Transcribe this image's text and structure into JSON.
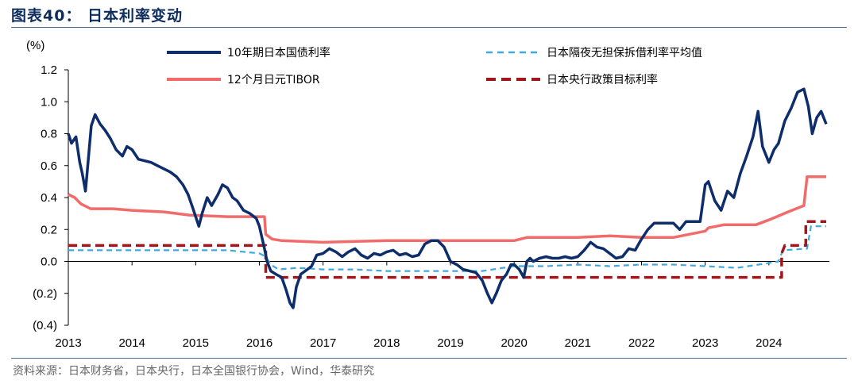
{
  "title": "图表40：  日本利率变动",
  "source": "资料来源：日本财务省，日本央行，日本全国银行协会，Wind，华泰研究",
  "chart_data": {
    "type": "line",
    "title": "图表40：  日本利率变动",
    "ylabel": "(%)",
    "xlabel": "",
    "ylim": [
      -0.4,
      1.2
    ],
    "xlim": [
      2013.0,
      2024.95
    ],
    "y_ticks": [
      {
        "v": 1.2,
        "label": "1.2"
      },
      {
        "v": 1.0,
        "label": "1.0"
      },
      {
        "v": 0.8,
        "label": "0.8"
      },
      {
        "v": 0.6,
        "label": "0.6"
      },
      {
        "v": 0.4,
        "label": "0.4"
      },
      {
        "v": 0.2,
        "label": "0.2"
      },
      {
        "v": 0.0,
        "label": "0.0"
      },
      {
        "v": -0.2,
        "label": "(0.2)"
      },
      {
        "v": -0.4,
        "label": "(0.4)"
      }
    ],
    "x_ticks": [
      "2013",
      "2014",
      "2015",
      "2016",
      "2017",
      "2018",
      "2019",
      "2020",
      "2021",
      "2022",
      "2023",
      "2024"
    ],
    "grid": false,
    "legend": "top",
    "series": [
      {
        "name": "10年期日本国债利率",
        "color": "#0d2d6b",
        "style": "solid",
        "points": [
          [
            2013.0,
            0.8
          ],
          [
            2013.05,
            0.74
          ],
          [
            2013.12,
            0.78
          ],
          [
            2013.18,
            0.62
          ],
          [
            2013.22,
            0.55
          ],
          [
            2013.27,
            0.44
          ],
          [
            2013.3,
            0.58
          ],
          [
            2013.36,
            0.85
          ],
          [
            2013.42,
            0.92
          ],
          [
            2013.5,
            0.86
          ],
          [
            2013.58,
            0.82
          ],
          [
            2013.66,
            0.77
          ],
          [
            2013.75,
            0.7
          ],
          [
            2013.85,
            0.66
          ],
          [
            2013.92,
            0.72
          ],
          [
            2014.0,
            0.7
          ],
          [
            2014.1,
            0.64
          ],
          [
            2014.2,
            0.63
          ],
          [
            2014.3,
            0.62
          ],
          [
            2014.4,
            0.6
          ],
          [
            2014.5,
            0.58
          ],
          [
            2014.6,
            0.56
          ],
          [
            2014.7,
            0.53
          ],
          [
            2014.8,
            0.48
          ],
          [
            2014.88,
            0.42
          ],
          [
            2014.95,
            0.34
          ],
          [
            2015.05,
            0.22
          ],
          [
            2015.1,
            0.3
          ],
          [
            2015.18,
            0.4
          ],
          [
            2015.25,
            0.35
          ],
          [
            2015.35,
            0.42
          ],
          [
            2015.42,
            0.48
          ],
          [
            2015.5,
            0.46
          ],
          [
            2015.58,
            0.4
          ],
          [
            2015.65,
            0.38
          ],
          [
            2015.75,
            0.32
          ],
          [
            2015.85,
            0.3
          ],
          [
            2015.95,
            0.27
          ],
          [
            2016.0,
            0.22
          ],
          [
            2016.08,
            0.08
          ],
          [
            2016.12,
            0.0
          ],
          [
            2016.18,
            -0.06
          ],
          [
            2016.26,
            -0.08
          ],
          [
            2016.35,
            -0.1
          ],
          [
            2016.42,
            -0.18
          ],
          [
            2016.48,
            -0.26
          ],
          [
            2016.53,
            -0.29
          ],
          [
            2016.58,
            -0.16
          ],
          [
            2016.65,
            -0.08
          ],
          [
            2016.72,
            -0.06
          ],
          [
            2016.82,
            -0.03
          ],
          [
            2016.9,
            0.04
          ],
          [
            2017.0,
            0.05
          ],
          [
            2017.1,
            0.08
          ],
          [
            2017.2,
            0.06
          ],
          [
            2017.3,
            0.03
          ],
          [
            2017.4,
            0.06
          ],
          [
            2017.5,
            0.08
          ],
          [
            2017.6,
            0.04
          ],
          [
            2017.7,
            0.02
          ],
          [
            2017.8,
            0.05
          ],
          [
            2017.9,
            0.04
          ],
          [
            2018.0,
            0.06
          ],
          [
            2018.1,
            0.07
          ],
          [
            2018.2,
            0.04
          ],
          [
            2018.3,
            0.05
          ],
          [
            2018.4,
            0.03
          ],
          [
            2018.5,
            0.04
          ],
          [
            2018.6,
            0.11
          ],
          [
            2018.7,
            0.13
          ],
          [
            2018.8,
            0.13
          ],
          [
            2018.9,
            0.09
          ],
          [
            2019.0,
            0.0
          ],
          [
            2019.1,
            -0.02
          ],
          [
            2019.2,
            -0.05
          ],
          [
            2019.3,
            -0.06
          ],
          [
            2019.4,
            -0.07
          ],
          [
            2019.5,
            -0.12
          ],
          [
            2019.58,
            -0.2
          ],
          [
            2019.65,
            -0.26
          ],
          [
            2019.72,
            -0.2
          ],
          [
            2019.8,
            -0.12
          ],
          [
            2019.88,
            -0.08
          ],
          [
            2019.95,
            -0.02
          ],
          [
            2020.0,
            -0.02
          ],
          [
            2020.08,
            -0.05
          ],
          [
            2020.15,
            -0.1
          ],
          [
            2020.2,
            0.0
          ],
          [
            2020.25,
            0.02
          ],
          [
            2020.3,
            0.0
          ],
          [
            2020.4,
            0.02
          ],
          [
            2020.5,
            0.03
          ],
          [
            2020.6,
            0.02
          ],
          [
            2020.7,
            0.02
          ],
          [
            2020.8,
            0.03
          ],
          [
            2020.9,
            0.02
          ],
          [
            2021.0,
            0.03
          ],
          [
            2021.1,
            0.07
          ],
          [
            2021.2,
            0.12
          ],
          [
            2021.3,
            0.09
          ],
          [
            2021.4,
            0.08
          ],
          [
            2021.5,
            0.05
          ],
          [
            2021.6,
            0.02
          ],
          [
            2021.7,
            0.03
          ],
          [
            2021.8,
            0.08
          ],
          [
            2021.9,
            0.07
          ],
          [
            2022.0,
            0.14
          ],
          [
            2022.1,
            0.2
          ],
          [
            2022.2,
            0.24
          ],
          [
            2022.3,
            0.24
          ],
          [
            2022.4,
            0.24
          ],
          [
            2022.5,
            0.24
          ],
          [
            2022.6,
            0.2
          ],
          [
            2022.7,
            0.25
          ],
          [
            2022.8,
            0.25
          ],
          [
            2022.92,
            0.25
          ],
          [
            2023.0,
            0.48
          ],
          [
            2023.05,
            0.5
          ],
          [
            2023.15,
            0.38
          ],
          [
            2023.25,
            0.32
          ],
          [
            2023.35,
            0.44
          ],
          [
            2023.45,
            0.4
          ],
          [
            2023.55,
            0.55
          ],
          [
            2023.65,
            0.66
          ],
          [
            2023.75,
            0.78
          ],
          [
            2023.83,
            0.94
          ],
          [
            2023.9,
            0.72
          ],
          [
            2024.0,
            0.62
          ],
          [
            2024.08,
            0.7
          ],
          [
            2024.15,
            0.74
          ],
          [
            2024.25,
            0.88
          ],
          [
            2024.35,
            0.96
          ],
          [
            2024.45,
            1.06
          ],
          [
            2024.55,
            1.08
          ],
          [
            2024.62,
            0.97
          ],
          [
            2024.68,
            0.8
          ],
          [
            2024.75,
            0.9
          ],
          [
            2024.82,
            0.94
          ],
          [
            2024.9,
            0.86
          ]
        ]
      },
      {
        "name": "日本隔夜无担保拆借利率平均值",
        "color": "#3fa9e0",
        "style": "dashed",
        "points": [
          [
            2013.0,
            0.07
          ],
          [
            2013.5,
            0.07
          ],
          [
            2014.0,
            0.07
          ],
          [
            2014.5,
            0.07
          ],
          [
            2015.0,
            0.07
          ],
          [
            2015.5,
            0.07
          ],
          [
            2016.0,
            0.05
          ],
          [
            2016.1,
            0.03
          ],
          [
            2016.18,
            -0.02
          ],
          [
            2016.3,
            -0.05
          ],
          [
            2016.6,
            -0.04
          ],
          [
            2017.0,
            -0.05
          ],
          [
            2017.5,
            -0.05
          ],
          [
            2018.0,
            -0.06
          ],
          [
            2018.5,
            -0.06
          ],
          [
            2019.0,
            -0.06
          ],
          [
            2019.5,
            -0.06
          ],
          [
            2020.0,
            -0.03
          ],
          [
            2020.5,
            -0.03
          ],
          [
            2021.0,
            -0.02
          ],
          [
            2021.5,
            -0.03
          ],
          [
            2022.0,
            -0.02
          ],
          [
            2022.5,
            -0.02
          ],
          [
            2023.0,
            -0.03
          ],
          [
            2023.5,
            -0.04
          ],
          [
            2024.0,
            -0.01
          ],
          [
            2024.15,
            0.0
          ],
          [
            2024.22,
            0.07
          ],
          [
            2024.6,
            0.08
          ],
          [
            2024.66,
            0.22
          ],
          [
            2024.9,
            0.22
          ]
        ]
      },
      {
        "name": "12个月日元TIBOR",
        "color": "#f26b6b",
        "style": "solid",
        "points": [
          [
            2013.0,
            0.42
          ],
          [
            2013.1,
            0.4
          ],
          [
            2013.2,
            0.36
          ],
          [
            2013.35,
            0.33
          ],
          [
            2013.7,
            0.33
          ],
          [
            2014.0,
            0.32
          ],
          [
            2014.5,
            0.31
          ],
          [
            2014.9,
            0.29
          ],
          [
            2015.5,
            0.28
          ],
          [
            2016.0,
            0.28
          ],
          [
            2016.08,
            0.28
          ],
          [
            2016.1,
            0.17
          ],
          [
            2016.2,
            0.14
          ],
          [
            2016.35,
            0.13
          ],
          [
            2017.0,
            0.12
          ],
          [
            2018.0,
            0.13
          ],
          [
            2019.0,
            0.13
          ],
          [
            2020.0,
            0.13
          ],
          [
            2020.2,
            0.15
          ],
          [
            2021.0,
            0.15
          ],
          [
            2021.5,
            0.16
          ],
          [
            2022.0,
            0.15
          ],
          [
            2022.5,
            0.15
          ],
          [
            2023.0,
            0.19
          ],
          [
            2023.05,
            0.21
          ],
          [
            2023.3,
            0.23
          ],
          [
            2023.8,
            0.23
          ],
          [
            2024.0,
            0.26
          ],
          [
            2024.3,
            0.31
          ],
          [
            2024.55,
            0.35
          ],
          [
            2024.6,
            0.53
          ],
          [
            2024.9,
            0.53
          ]
        ]
      },
      {
        "name": "日本央行政策目标利率",
        "color": "#a3171c",
        "style": "dashed",
        "points": [
          [
            2013.0,
            0.1
          ],
          [
            2016.1,
            0.1
          ],
          [
            2016.1,
            -0.1
          ],
          [
            2024.2,
            -0.1
          ],
          [
            2024.2,
            0.05
          ],
          [
            2024.25,
            0.1
          ],
          [
            2024.58,
            0.1
          ],
          [
            2024.58,
            0.25
          ],
          [
            2024.9,
            0.25
          ]
        ]
      }
    ]
  }
}
